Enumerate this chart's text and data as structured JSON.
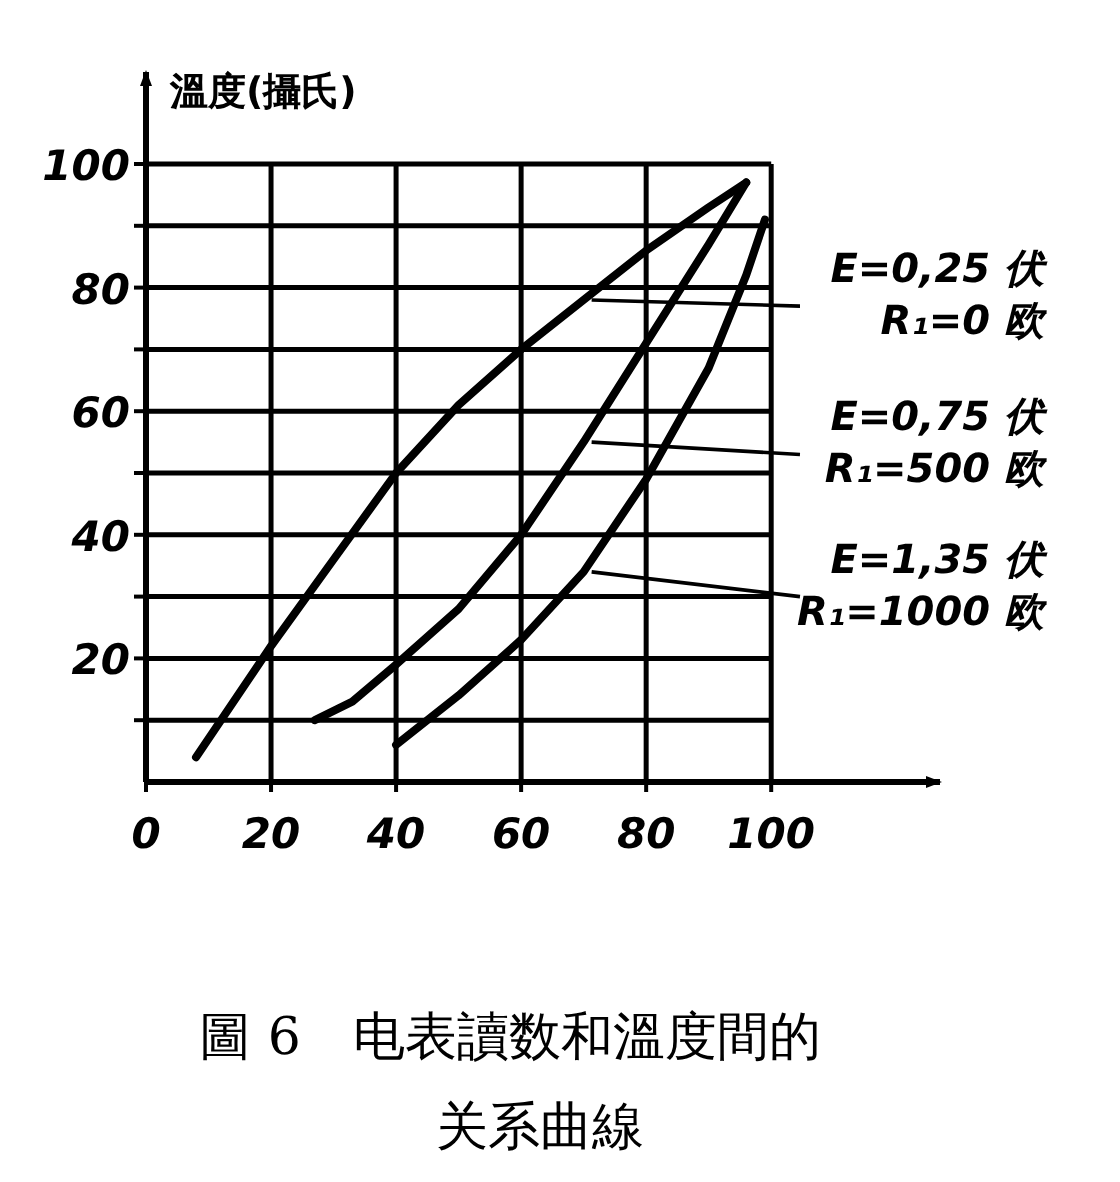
{
  "chart_data": {
    "type": "line",
    "title": "圖 6　电表讀数和溫度間的关系曲線",
    "ylabel": "溫度(攝氏)",
    "xlim": [
      0,
      127
    ],
    "ylim": [
      0,
      100
    ],
    "xticks": [
      0,
      20,
      40,
      60,
      80,
      100
    ],
    "yticks": [
      {
        "value": 10,
        "label": null
      },
      20,
      {
        "value": 30,
        "label": null
      },
      40,
      {
        "value": 50,
        "label": null
      },
      60,
      {
        "value": 70,
        "label": null
      },
      80,
      {
        "value": 90,
        "label": null
      },
      100
    ],
    "grid": true,
    "line_style": "solid",
    "series": [
      {
        "name": "E=0,25 伏\nR₁=0 欧",
        "color": "#000000",
        "x": [
          8,
          20,
          30,
          40,
          50,
          60,
          70,
          80,
          90,
          96
        ],
        "values": [
          4,
          22,
          36,
          50,
          61,
          70,
          78,
          86,
          93,
          97
        ]
      },
      {
        "name": "E=0,75 伏\nR₁=500 欧",
        "color": "#000000",
        "x": [
          27,
          33,
          40,
          50,
          60,
          70,
          80,
          90,
          96
        ],
        "values": [
          10,
          13,
          19,
          28,
          40,
          55,
          71,
          87,
          97
        ]
      },
      {
        "name": "E=1,35 伏\nR₁=1000 欧",
        "color": "#000000",
        "x": [
          40,
          50,
          60,
          70,
          80,
          90,
          96,
          99
        ],
        "values": [
          6,
          14,
          23,
          34,
          49,
          67,
          82,
          91
        ]
      }
    ]
  }
}
